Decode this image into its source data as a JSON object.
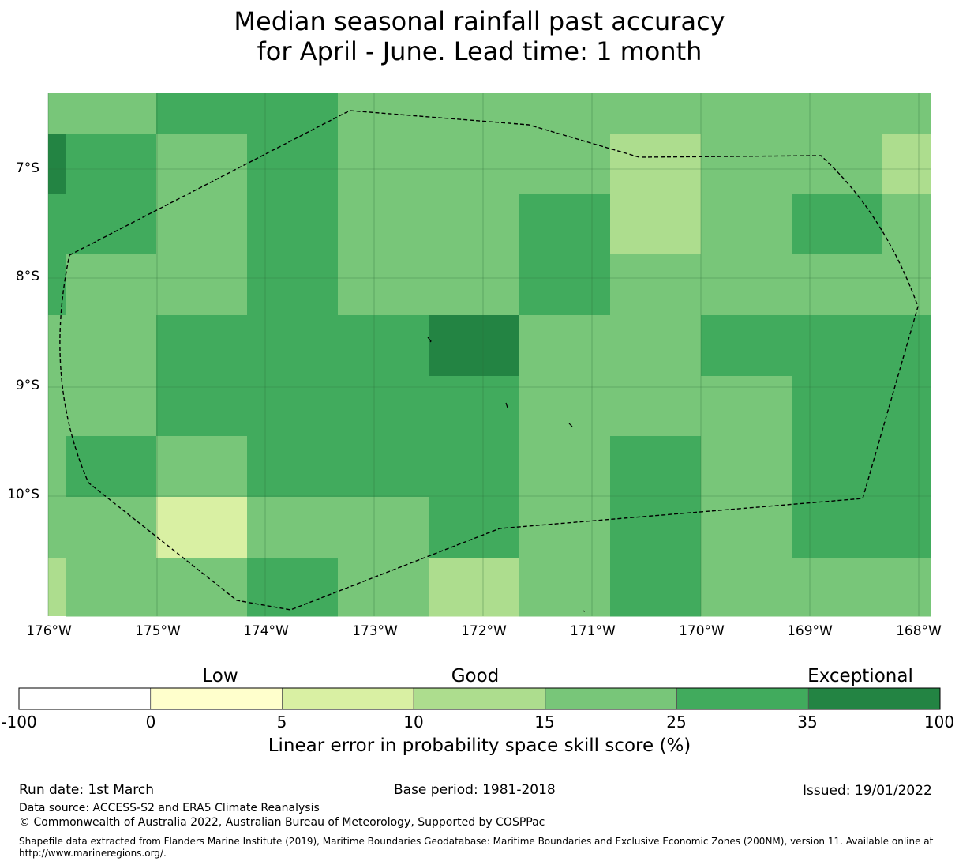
{
  "title": {
    "line1": "Median seasonal rainfall past accuracy",
    "line2": "for April - June. Lead time: 1 month"
  },
  "map": {
    "lat_labels": [
      "7°S",
      "8°S",
      "9°S",
      "10°S"
    ],
    "lon_labels": [
      "176°W",
      "175°W",
      "174°W",
      "173°W",
      "172°W",
      "171°W",
      "170°W",
      "169°W",
      "168°W"
    ],
    "grid_classes": [
      [
        4,
        5,
        5,
        4,
        4,
        4,
        4,
        4,
        4,
        4
      ],
      [
        5,
        4,
        5,
        4,
        4,
        4,
        3,
        4,
        4,
        3
      ],
      [
        5,
        4,
        5,
        4,
        4,
        5,
        3,
        4,
        5,
        4
      ],
      [
        4,
        4,
        5,
        4,
        4,
        5,
        4,
        4,
        4,
        4
      ],
      [
        4,
        5,
        5,
        5,
        6,
        4,
        4,
        5,
        5,
        5
      ],
      [
        4,
        5,
        5,
        5,
        5,
        4,
        4,
        4,
        5,
        5
      ],
      [
        5,
        4,
        5,
        5,
        5,
        4,
        5,
        4,
        5,
        5
      ],
      [
        4,
        2,
        4,
        4,
        5,
        4,
        5,
        4,
        5,
        5
      ],
      [
        4,
        4,
        5,
        4,
        3,
        4,
        5,
        4,
        4,
        4
      ]
    ],
    "edge_column_classes": [
      4,
      6,
      5,
      5,
      4,
      4,
      4,
      4,
      3
    ]
  },
  "colorbar": {
    "categories": [
      "Low",
      "Good",
      "Exceptional"
    ],
    "ticks": [
      "-100",
      "0",
      "5",
      "10",
      "15",
      "25",
      "35",
      "100"
    ],
    "colors": [
      "#ffffff",
      "#ffffcc",
      "#d9f0a3",
      "#addd8e",
      "#78c679",
      "#41ab5d",
      "#238443"
    ],
    "label": "Linear error in probability space skill score (%)"
  },
  "footer": {
    "run_date": "Run date: 1st March",
    "base_period": "Base period: 1981-2018",
    "issued": "Issued: 19/01/2022",
    "data_source": "Data source: ACCESS-S2 and ERA5 Climate Reanalysis",
    "copyright": "© Commonwealth of Australia 2022, Australian Bureau of Meteorology, Supported by COSPPac",
    "shapefile_line1": "Shapefile data extracted from Flanders Marine Institute (2019), Maritime Boundaries Geodatabase: Maritime Boundaries and Exclusive Economic Zones (200NM), version 11. Available online at",
    "shapefile_line2": "http://www.marineregions.org/."
  }
}
